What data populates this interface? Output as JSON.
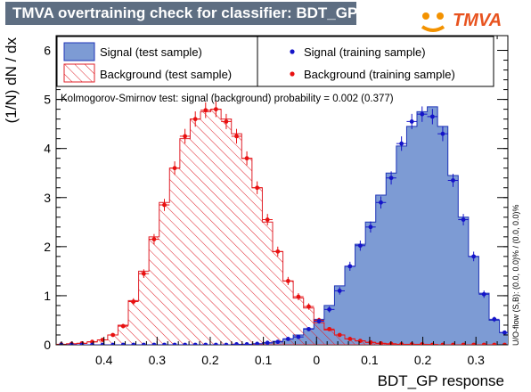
{
  "title": "TMVA overtraining check for classifier: BDT_GP",
  "logo_text": "TMVA",
  "colors": {
    "title_bg": "#5e6e82",
    "signal_fill": "#7d9bd4",
    "signal_line": "#1f35b8",
    "background_line": "#e0202a",
    "signal_marker": "#1414c8",
    "background_marker": "#e81010",
    "logo_orange": "#f39200",
    "logo_blue": "#1e4fa0"
  },
  "legend": {
    "signal_test": "Signal (test sample)",
    "background_test": "Background (test sample)",
    "signal_train": "Signal (training sample)",
    "background_train": "Background (training sample)"
  },
  "ks_text": "Kolmogorov-Smirnov test: signal (background) probability = 0.002 (0.377)",
  "overflow_text": "U/O-flow (S,B): (0.0, 0.0)% / (0.0, 0.0)%",
  "chart_data": {
    "type": "bar",
    "xlabel": "BDT_GP response",
    "ylabel": "(1/N) dN / dx",
    "xlim": [
      -0.49,
      0.36
    ],
    "ylim": [
      0,
      6.3
    ],
    "x_ticks": [
      -0.4,
      -0.3,
      -0.2,
      -0.1,
      0,
      0.1,
      0.2,
      0.3
    ],
    "x_tick_labels": [
      "0.4",
      "0.3",
      "0.2",
      "0.1",
      "0",
      "0.1",
      "0.2",
      "0.3"
    ],
    "y_ticks": [
      0,
      1,
      2,
      3,
      4,
      5,
      6
    ],
    "bin_edges": [
      -0.49,
      -0.4706,
      -0.4512,
      -0.4318,
      -0.4124,
      -0.393,
      -0.3736,
      -0.3542,
      -0.3348,
      -0.3154,
      -0.296,
      -0.2766,
      -0.2572,
      -0.2378,
      -0.2184,
      -0.199,
      -0.1796,
      -0.1602,
      -0.1408,
      -0.1214,
      -0.102,
      -0.0826,
      -0.0632,
      -0.0438,
      -0.0244,
      -0.005,
      0.0144,
      0.0338,
      0.0532,
      0.0726,
      0.092,
      0.1114,
      0.1308,
      0.1502,
      0.1696,
      0.189,
      0.2084,
      0.2278,
      0.2472,
      0.2666,
      0.286,
      0.3054,
      0.3248,
      0.3442,
      0.3636
    ],
    "series": [
      {
        "name": "Signal (test sample)",
        "values": [
          0,
          0,
          0,
          0,
          0,
          0,
          0,
          0,
          0,
          0,
          0,
          0,
          0,
          0,
          0,
          0,
          0,
          0.01,
          0.01,
          0.02,
          0.04,
          0.07,
          0.12,
          0.2,
          0.33,
          0.52,
          0.8,
          1.2,
          1.6,
          2.05,
          2.5,
          3.05,
          3.5,
          4.05,
          4.45,
          4.75,
          4.85,
          4.45,
          3.45,
          2.6,
          1.8,
          1.05,
          0.5,
          0.25
        ]
      },
      {
        "name": "Background (test sample)",
        "values": [
          0.01,
          0.02,
          0.03,
          0.06,
          0.1,
          0.2,
          0.4,
          0.9,
          1.5,
          2.2,
          2.9,
          3.6,
          4.2,
          4.6,
          4.75,
          4.8,
          4.6,
          4.3,
          3.8,
          3.2,
          2.5,
          1.9,
          1.3,
          0.95,
          0.75,
          0.45,
          0.3,
          0.2,
          0.12,
          0.08,
          0.05,
          0.03,
          0.02,
          0.01,
          0.01,
          0.01,
          0.01,
          0,
          0,
          0,
          0,
          0,
          0,
          0
        ]
      },
      {
        "name": "Signal (training sample)",
        "values": [
          0,
          0,
          0,
          0,
          0,
          0,
          0,
          0,
          0,
          0,
          0,
          0,
          0,
          0,
          0,
          0,
          0,
          0.01,
          0.01,
          0.02,
          0.04,
          0.06,
          0.12,
          0.16,
          0.32,
          0.48,
          0.72,
          1.1,
          1.6,
          2.02,
          2.4,
          2.9,
          3.4,
          4.1,
          4.55,
          4.7,
          4.65,
          4.3,
          3.35,
          2.55,
          1.8,
          1.03,
          0.52,
          0.25
        ]
      },
      {
        "name": "Background (training sample)",
        "values": [
          0.01,
          0.02,
          0.03,
          0.06,
          0.1,
          0.2,
          0.38,
          0.88,
          1.45,
          2.15,
          2.85,
          3.6,
          4.25,
          4.6,
          4.78,
          4.8,
          4.55,
          4.25,
          3.8,
          3.2,
          2.55,
          1.9,
          1.3,
          0.98,
          0.78,
          0.5,
          0.32,
          0.2,
          0.12,
          0.08,
          0.05,
          0.03,
          0.02,
          0.01,
          0.01,
          0.01,
          0,
          0,
          0,
          0,
          0,
          0,
          0,
          0
        ]
      }
    ]
  }
}
